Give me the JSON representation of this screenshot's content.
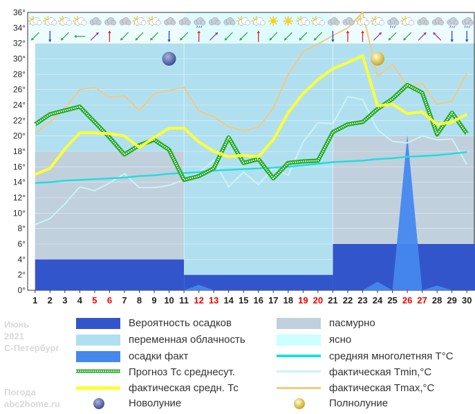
{
  "watermark": {
    "month": "Июнь",
    "year": "2021",
    "city": "С-Петербург",
    "brand1": "Погода",
    "brand2": "abc2home.ru"
  },
  "legend": {
    "precip_prob": "Вероятность осадков",
    "variable": "переменная облачность",
    "precip_fact": "осадки факт",
    "forecast": "Прогноз Тс среднесут.",
    "actual_avg": "фактическая средн. Тс",
    "new_moon": "Новолуние",
    "overcast": "пасмурно",
    "clear": "ясно",
    "climate": "средняя многолетняя T°C",
    "tmin": "фактическая Tmin,°C",
    "tmax": "фактическая Tmax,°C",
    "full_moon": "Полнолуние"
  },
  "colors": {
    "precip_prob": "#3355cc",
    "variable": "#b0e0f0",
    "precip_fact": "#4488ee",
    "forecast": "#22aa22",
    "actual_avg": "#ffff33",
    "overcast": "#c0d0dd",
    "clear": "#ccffff",
    "climate": "#22dddd",
    "tmin": "#ccf2f8",
    "tmax": "#f5c880",
    "moon_new": "#5566aa",
    "moon_full": "#eedd66",
    "weekend_label": "#ee0000"
  },
  "chart_data": {
    "type": "line",
    "ylim": [
      0,
      36
    ],
    "yticks": [
      "0°",
      "2°",
      "4°",
      "6°",
      "8°",
      "10°",
      "12°",
      "14°",
      "16°",
      "18°",
      "20°",
      "22°",
      "24°",
      "26°",
      "28°",
      "30°",
      "32°",
      "34°",
      "36°"
    ],
    "days": [
      "1",
      "2",
      "3",
      "4",
      "5",
      "6",
      "7",
      "8",
      "9",
      "10",
      "11",
      "12",
      "13",
      "14",
      "15",
      "16",
      "17",
      "18",
      "19",
      "20",
      "21",
      "22",
      "23",
      "24",
      "25",
      "26",
      "27",
      "28",
      "29",
      "30"
    ],
    "weekend_days": [
      5,
      6,
      12,
      13,
      19,
      20,
      26,
      27
    ],
    "cloud_bands": [
      {
        "from": 0.5,
        "to": 10.5,
        "top": 18,
        "kind": "overcast"
      },
      {
        "from": 0.5,
        "to": 10.5,
        "top": 32,
        "kind": "variable"
      },
      {
        "from": 10.5,
        "to": 20.5,
        "top": 32,
        "kind": "variable"
      },
      {
        "from": 10.5,
        "to": 20.5,
        "top": 36,
        "kind": "clear"
      },
      {
        "from": 20.5,
        "to": 30.5,
        "top": 20,
        "kind": "overcast"
      },
      {
        "from": 20.5,
        "to": 30.5,
        "top": 32,
        "kind": "variable"
      }
    ],
    "precip_probability": [
      {
        "from": 0.5,
        "to": 10.5,
        "value": 4
      },
      {
        "from": 10.5,
        "to": 20.5,
        "value": 2
      },
      {
        "from": 20.5,
        "to": 30.5,
        "value": 6
      }
    ],
    "series": [
      {
        "name": "Прогноз Тс среднесут.",
        "values": [
          21.5,
          22.8,
          23.3,
          23.8,
          21.8,
          19.8,
          17.6,
          18.8,
          19.5,
          18.2,
          14.3,
          14.8,
          15.8,
          19.8,
          16.5,
          17.0,
          14.5,
          16.5,
          16.7,
          16.8,
          20.5,
          21.5,
          21.8,
          23.5,
          24.8,
          26.6,
          25.6,
          20.2,
          23.0,
          20.3
        ]
      },
      {
        "name": "фактическая средн. Тс",
        "values": [
          15.0,
          15.8,
          18.3,
          20.4,
          20.4,
          20.3,
          20.0,
          18.5,
          19.8,
          21.0,
          21.0,
          19.2,
          18.0,
          17.3,
          17.5,
          17.3,
          19.5,
          23.0,
          25.5,
          27.3,
          28.7,
          29.5,
          30.4,
          23.9,
          24.1,
          22.9,
          23.1,
          21.5,
          21.8,
          22.8
        ]
      },
      {
        "name": "средняя многолетняя T°C",
        "values": [
          13.9,
          14.0,
          14.2,
          14.3,
          14.4,
          14.5,
          14.6,
          14.8,
          14.9,
          15.1,
          15.2,
          15.3,
          15.5,
          15.6,
          15.7,
          15.8,
          15.9,
          16.0,
          16.2,
          16.4,
          16.6,
          16.7,
          16.8,
          17.0,
          17.1,
          17.3,
          17.4,
          17.5,
          17.7,
          17.9
        ]
      },
      {
        "name": "фактическая Tmin,°C",
        "values": [
          8.5,
          9.3,
          11.2,
          13.4,
          12.9,
          13.9,
          15.1,
          13.3,
          13.3,
          13.6,
          14.3,
          15.3,
          16.8,
          13.4,
          15.3,
          13.7,
          15.8,
          14.9,
          19.2,
          21.7,
          21.6,
          25.1,
          24.7,
          20.8,
          19.3,
          19.1,
          20.0,
          19.5,
          19.6,
          16.3
        ]
      },
      {
        "name": "фактическая Tmax,°C",
        "values": [
          20.3,
          21.8,
          23.6,
          26.0,
          26.3,
          25.0,
          25.2,
          23.3,
          25.5,
          25.9,
          26.3,
          23.2,
          22.5,
          21.2,
          20.7,
          21.1,
          23.6,
          28.0,
          30.9,
          31.9,
          33.0,
          34.0,
          36.0,
          27.7,
          29.3,
          26.5,
          26.8,
          24.1,
          24.5,
          28.1
        ]
      },
      {
        "name": "осадки факт",
        "values": [
          0,
          0,
          0,
          0,
          0,
          0,
          0,
          0,
          0,
          0,
          0,
          0.7,
          0,
          0,
          0,
          0,
          0,
          0,
          0,
          0,
          0,
          0,
          0,
          1.1,
          0,
          20.1,
          0,
          0.6,
          0,
          0
        ]
      }
    ],
    "moon": [
      {
        "phase": "new",
        "day": 10,
        "y": 30
      },
      {
        "phase": "full",
        "day": 24,
        "y": 30
      }
    ],
    "weather_icons": [
      "partly-sunny",
      "partly-sunny",
      "partly-sunny",
      "partly-sunny",
      "cloudy",
      "cloudy",
      "cloudy",
      "partly-sunny",
      "partly-sunny",
      "cloudy",
      "cloudy",
      "rain",
      "cloudy",
      "cloudy",
      "partly-sunny",
      "partly-sunny",
      "sunny",
      "sunny",
      "partly-sunny",
      "partly-sunny",
      "cloudy",
      "cloudy",
      "partly-sunny",
      "partly-sunny",
      "rain",
      "partly-sunny",
      "cloudy",
      "cloudy",
      "rain",
      "rain"
    ],
    "wind_arrows": [
      "SW",
      "S",
      "SW",
      "W",
      "NE",
      "N",
      "SW",
      "SW",
      "SW",
      "S",
      "SW",
      "N",
      "NE",
      "SW",
      "SW",
      "N",
      "SW",
      "SW",
      "SW",
      "SW",
      "S",
      "N",
      "N",
      "NE",
      "SW",
      "SW",
      "NE",
      "NW",
      "S",
      "S"
    ]
  }
}
